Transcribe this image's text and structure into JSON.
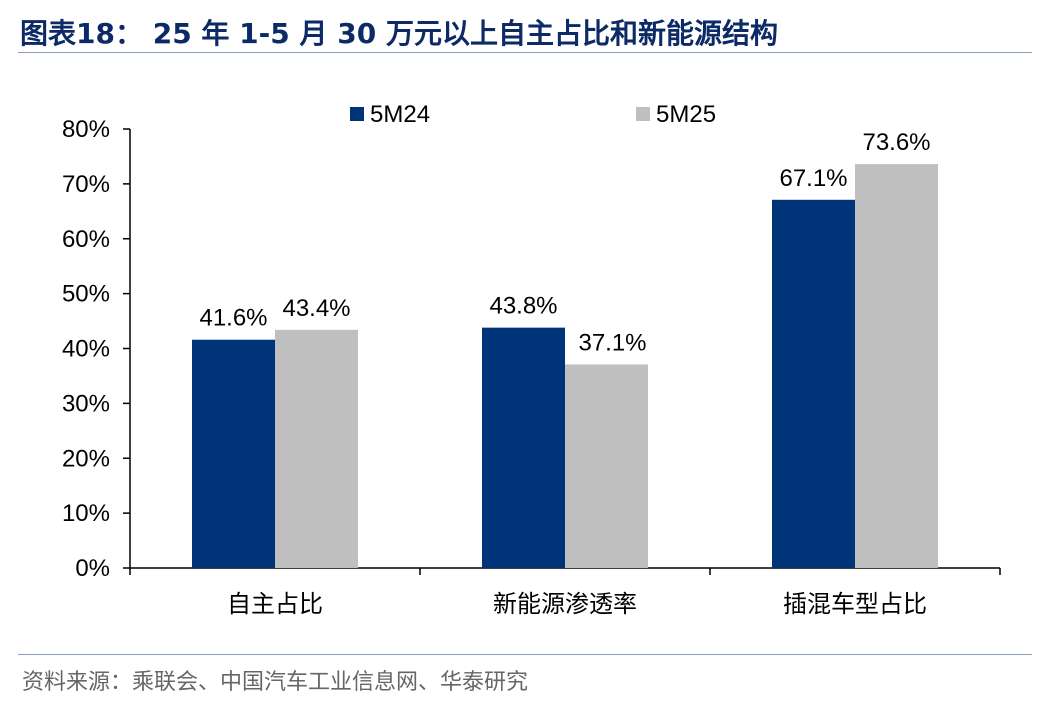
{
  "figure_title": "图表18： 25 年 1-5 月 30 万元以上自主占比和新能源结构",
  "source": "资料来源：乘联会、中国汽车工业信息网、华泰研究",
  "colors": {
    "series_5M24": "#003478",
    "series_5M25": "#bfbfbf",
    "title": "#0b2a66",
    "rule": "#8aa0bf"
  },
  "chart_data": {
    "type": "bar",
    "categories": [
      "自主占比",
      "新能源渗透率",
      "插混车型占比"
    ],
    "series": [
      {
        "name": "5M24",
        "values": [
          41.6,
          43.8,
          67.1
        ],
        "labels": [
          "41.6%",
          "43.8%",
          "67.1%"
        ]
      },
      {
        "name": "5M25",
        "values": [
          43.4,
          37.1,
          73.6
        ],
        "labels": [
          "43.4%",
          "37.1%",
          "73.6%"
        ]
      }
    ],
    "ylim": [
      0,
      80
    ],
    "yticks": [
      0,
      10,
      20,
      30,
      40,
      50,
      60,
      70,
      80
    ],
    "ytick_labels": [
      "0%",
      "10%",
      "20%",
      "30%",
      "40%",
      "50%",
      "60%",
      "70%",
      "80%"
    ],
    "grid": false,
    "legend_position": "top"
  }
}
